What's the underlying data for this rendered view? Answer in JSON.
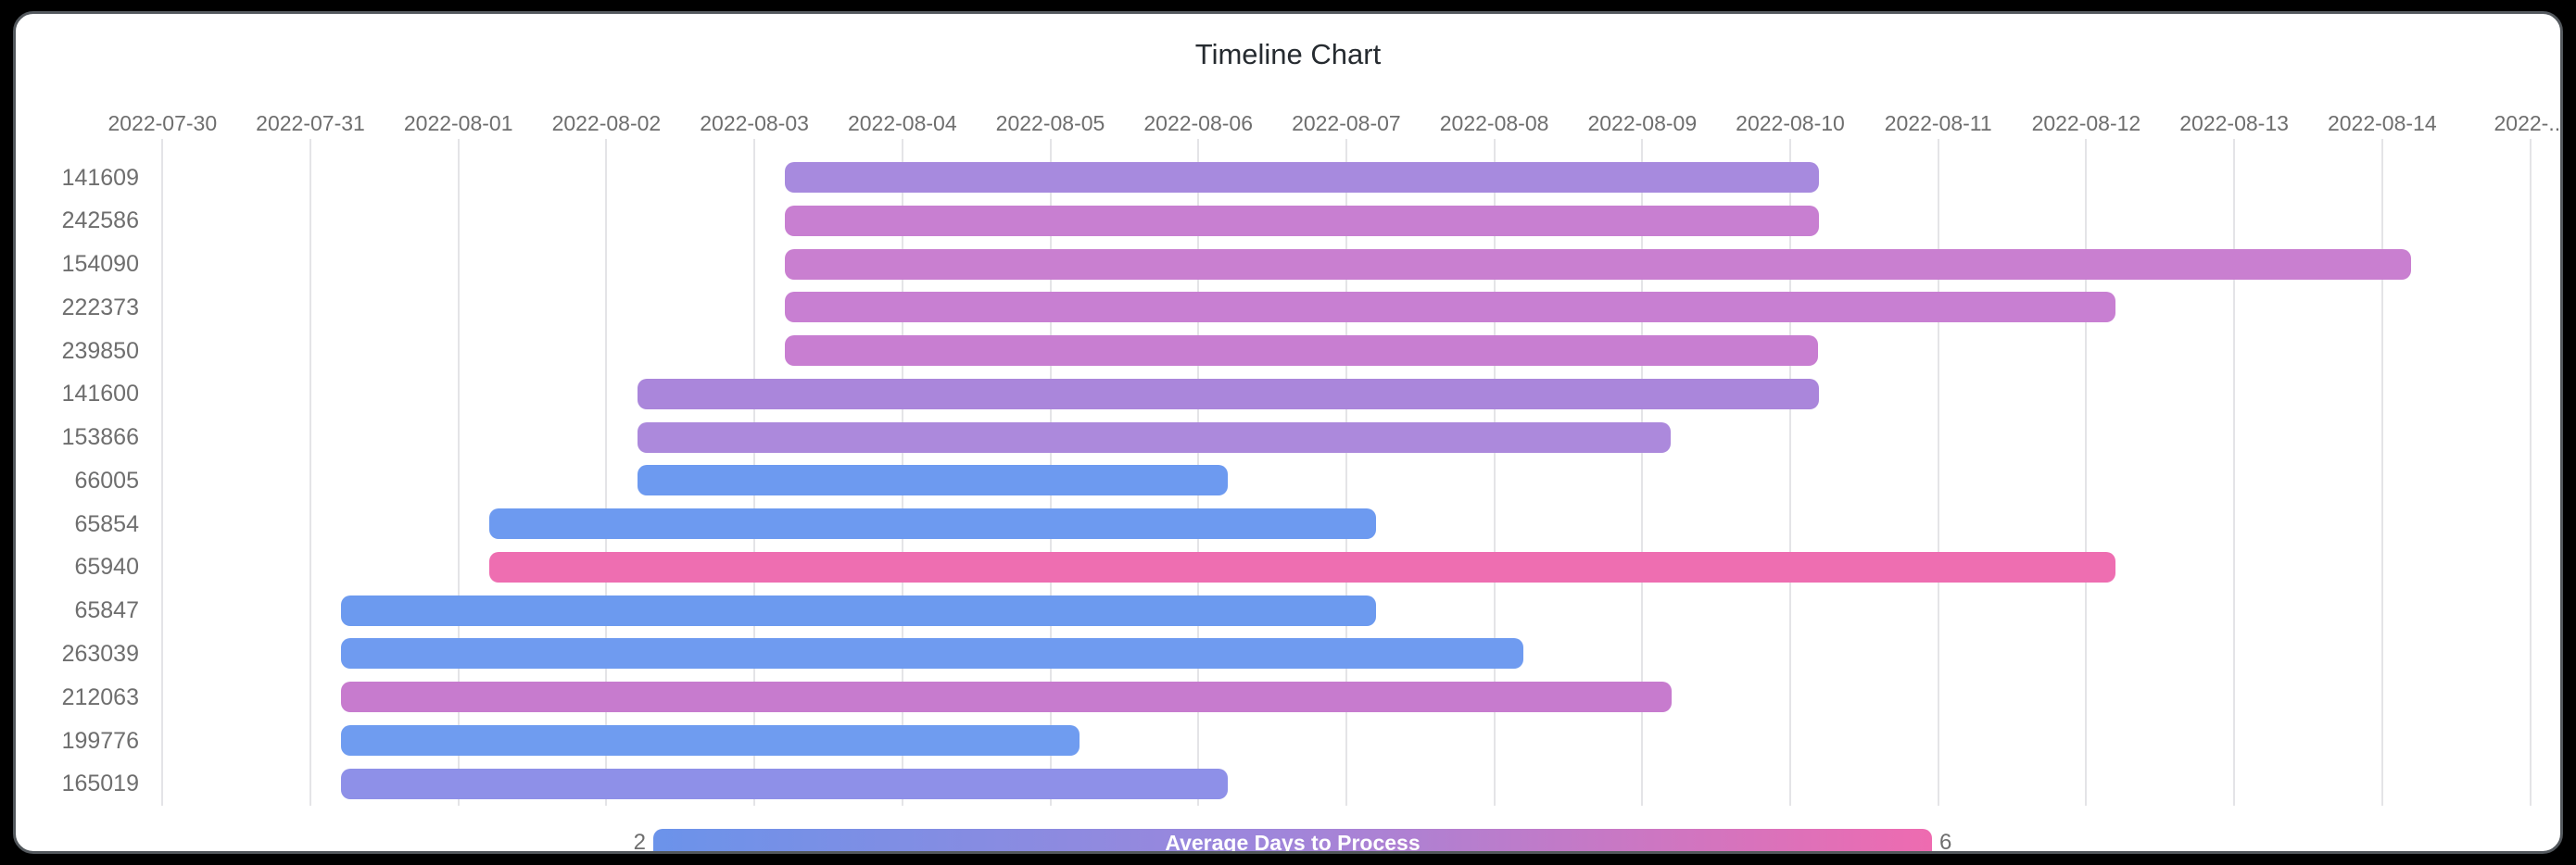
{
  "palette": {
    "background": "#000000",
    "card": "#ffffff",
    "card_border": "#53585d",
    "grid": "#e4e4e7",
    "axis_text": "#6e6e6e",
    "title_text": "#262b30",
    "legend_text": "#ffffff"
  },
  "chart_data": {
    "type": "timeline",
    "title": "Timeline Chart",
    "axis_start": "2022-07-30",
    "x_ticks": [
      "2022-07-30",
      "2022-07-31",
      "2022-08-01",
      "2022-08-02",
      "2022-08-03",
      "2022-08-04",
      "2022-08-05",
      "2022-08-06",
      "2022-08-07",
      "2022-08-08",
      "2022-08-09",
      "2022-08-10",
      "2022-08-11",
      "2022-08-12",
      "2022-08-13",
      "2022-08-14",
      "2022-..."
    ],
    "rows": [
      {
        "label": "141609",
        "start": "2022-08-03 05:00",
        "end": "2022-08-10 04:40",
        "color": "#a78ade"
      },
      {
        "label": "242586",
        "start": "2022-08-03 05:00",
        "end": "2022-08-10 04:40",
        "color": "#c87fd1"
      },
      {
        "label": "154090",
        "start": "2022-08-03 05:00",
        "end": "2022-08-14 04:45",
        "color": "#c97fd0"
      },
      {
        "label": "222373",
        "start": "2022-08-03 05:00",
        "end": "2022-08-12 04:45",
        "color": "#c87fd2"
      },
      {
        "label": "239850",
        "start": "2022-08-03 05:00",
        "end": "2022-08-10 04:35",
        "color": "#c87ed1"
      },
      {
        "label": "141600",
        "start": "2022-08-02 05:00",
        "end": "2022-08-10 04:40",
        "color": "#aa86db"
      },
      {
        "label": "153866",
        "start": "2022-08-02 05:00",
        "end": "2022-08-09 04:40",
        "color": "#ac89dc"
      },
      {
        "label": "66005",
        "start": "2022-08-02 05:00",
        "end": "2022-08-06 04:45",
        "color": "#6d9af0"
      },
      {
        "label": "65854",
        "start": "2022-08-01 05:00",
        "end": "2022-08-07 04:50",
        "color": "#6d9af0"
      },
      {
        "label": "65940",
        "start": "2022-08-01 05:00",
        "end": "2022-08-12 04:45",
        "color": "#ee6eb1"
      },
      {
        "label": "65847",
        "start": "2022-07-31 05:00",
        "end": "2022-08-07 04:50",
        "color": "#6c9aef"
      },
      {
        "label": "263039",
        "start": "2022-07-31 05:00",
        "end": "2022-08-08 04:45",
        "color": "#6f9bf0"
      },
      {
        "label": "212063",
        "start": "2022-07-31 05:00",
        "end": "2022-08-09 04:45",
        "color": "#c77bce"
      },
      {
        "label": "199776",
        "start": "2022-07-31 05:00",
        "end": "2022-08-05 04:40",
        "color": "#6f9cf0"
      },
      {
        "label": "165019",
        "start": "2022-07-31 05:00",
        "end": "2022-08-06 04:45",
        "color": "#8e90e8"
      }
    ],
    "legend": {
      "label": "Average Days to Process",
      "min": "2",
      "max": "6",
      "gradient": [
        "#6b93ea",
        "#9e86db",
        "#ee6bb0"
      ]
    }
  }
}
